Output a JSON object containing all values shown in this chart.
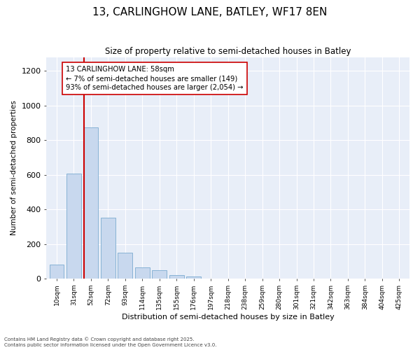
{
  "title_line1": "13, CARLINGHOW LANE, BATLEY, WF17 8EN",
  "title_line2": "Size of property relative to semi-detached houses in Batley",
  "xlabel": "Distribution of semi-detached houses by size in Batley",
  "ylabel": "Number of semi-detached properties",
  "categories": [
    "10sqm",
    "31sqm",
    "52sqm",
    "72sqm",
    "93sqm",
    "114sqm",
    "135sqm",
    "155sqm",
    "176sqm",
    "197sqm",
    "218sqm",
    "238sqm",
    "259sqm",
    "280sqm",
    "301sqm",
    "321sqm",
    "342sqm",
    "363sqm",
    "384sqm",
    "404sqm",
    "425sqm"
  ],
  "bar_values": [
    80,
    605,
    875,
    350,
    150,
    65,
    50,
    18,
    13,
    0,
    0,
    0,
    0,
    0,
    0,
    0,
    0,
    0,
    0,
    0,
    0
  ],
  "bar_color": "#c8d8ee",
  "bar_edge_color": "#7aaad0",
  "vline_bin_index": 2,
  "annotation_title": "13 CARLINGHOW LANE: 58sqm",
  "annotation_line1": "← 7% of semi-detached houses are smaller (149)",
  "annotation_line2": "93% of semi-detached houses are larger (2,054) →",
  "ylim": [
    0,
    1280
  ],
  "yticks": [
    0,
    200,
    400,
    600,
    800,
    1000,
    1200
  ],
  "footer_line1": "Contains HM Land Registry data © Crown copyright and database right 2025.",
  "footer_line2": "Contains public sector information licensed under the Open Government Licence v3.0.",
  "bg_color": "#ffffff",
  "axes_bg_color": "#e8eef8",
  "grid_color": "#ffffff",
  "vline_color": "#cc0000",
  "annotation_box_color": "#ffffff",
  "annotation_box_edge": "#cc0000"
}
